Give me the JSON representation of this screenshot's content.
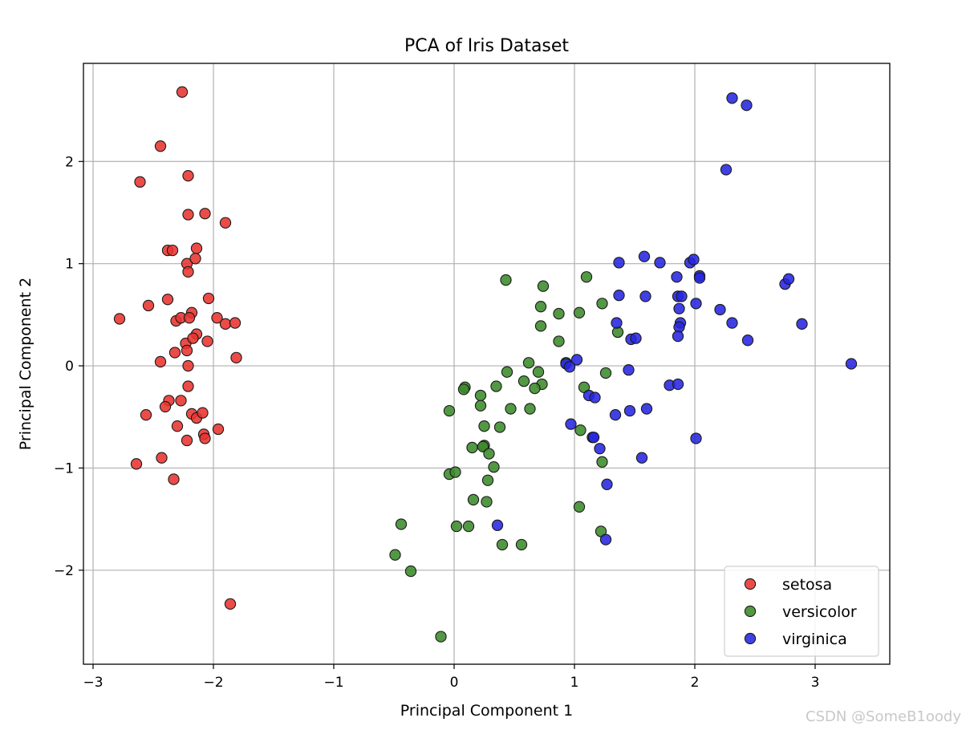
{
  "chart_data": {
    "type": "scatter",
    "title": "PCA of Iris Dataset",
    "xlabel": "Principal Component 1",
    "ylabel": "Principal Component 2",
    "xlim": [
      -3.08,
      3.62
    ],
    "ylim": [
      -2.92,
      2.96
    ],
    "xticks": [
      -3,
      -2,
      -1,
      0,
      1,
      2,
      3
    ],
    "yticks": [
      -2,
      -1,
      0,
      1,
      2
    ],
    "xtick_labels": [
      "−3",
      "−2",
      "−1",
      "0",
      "1",
      "2",
      "3"
    ],
    "ytick_labels": [
      "−2",
      "−1",
      "0",
      "1",
      "2"
    ],
    "grid": true,
    "legend_position": "lower-right",
    "series": [
      {
        "name": "setosa",
        "color": "#e8332f",
        "points": [
          [
            -2.26,
            2.68
          ],
          [
            -2.44,
            2.15
          ],
          [
            -2.61,
            1.8
          ],
          [
            -2.21,
            1.86
          ],
          [
            -2.21,
            1.48
          ],
          [
            -2.07,
            1.49
          ],
          [
            -1.9,
            1.4
          ],
          [
            -2.38,
            1.13
          ],
          [
            -2.34,
            1.13
          ],
          [
            -2.14,
            1.15
          ],
          [
            -2.22,
            1.0
          ],
          [
            -2.15,
            1.05
          ],
          [
            -2.21,
            0.92
          ],
          [
            -2.38,
            0.65
          ],
          [
            -2.54,
            0.59
          ],
          [
            -2.04,
            0.66
          ],
          [
            -2.78,
            0.46
          ],
          [
            -2.31,
            0.44
          ],
          [
            -2.27,
            0.47
          ],
          [
            -2.18,
            0.52
          ],
          [
            -2.2,
            0.47
          ],
          [
            -1.97,
            0.47
          ],
          [
            -1.9,
            0.41
          ],
          [
            -1.82,
            0.42
          ],
          [
            -2.23,
            0.22
          ],
          [
            -2.14,
            0.31
          ],
          [
            -2.17,
            0.27
          ],
          [
            -2.05,
            0.24
          ],
          [
            -2.22,
            0.15
          ],
          [
            -2.32,
            0.13
          ],
          [
            -2.44,
            0.04
          ],
          [
            -1.81,
            0.08
          ],
          [
            -2.21,
            0.0
          ],
          [
            -2.21,
            -0.2
          ],
          [
            -2.37,
            -0.34
          ],
          [
            -2.27,
            -0.34
          ],
          [
            -2.4,
            -0.4
          ],
          [
            -2.56,
            -0.48
          ],
          [
            -2.18,
            -0.47
          ],
          [
            -2.14,
            -0.51
          ],
          [
            -2.09,
            -0.46
          ],
          [
            -2.3,
            -0.59
          ],
          [
            -2.08,
            -0.67
          ],
          [
            -2.07,
            -0.71
          ],
          [
            -2.22,
            -0.73
          ],
          [
            -1.96,
            -0.62
          ],
          [
            -2.43,
            -0.9
          ],
          [
            -2.64,
            -0.96
          ],
          [
            -2.33,
            -1.11
          ],
          [
            -1.86,
            -2.33
          ]
        ]
      },
      {
        "name": "versicolor",
        "color": "#3b8a2a",
        "points": [
          [
            0.43,
            0.84
          ],
          [
            1.1,
            0.87
          ],
          [
            0.74,
            0.78
          ],
          [
            0.72,
            0.58
          ],
          [
            1.23,
            0.61
          ],
          [
            0.87,
            0.51
          ],
          [
            1.04,
            0.52
          ],
          [
            0.72,
            0.39
          ],
          [
            1.36,
            0.33
          ],
          [
            0.87,
            0.24
          ],
          [
            0.93,
            0.03
          ],
          [
            0.62,
            0.03
          ],
          [
            0.7,
            -0.06
          ],
          [
            0.44,
            -0.06
          ],
          [
            0.58,
            -0.15
          ],
          [
            0.73,
            -0.18
          ],
          [
            0.67,
            -0.22
          ],
          [
            1.26,
            -0.07
          ],
          [
            1.08,
            -0.21
          ],
          [
            0.35,
            -0.2
          ],
          [
            0.09,
            -0.21
          ],
          [
            0.08,
            -0.23
          ],
          [
            0.22,
            -0.29
          ],
          [
            0.22,
            -0.39
          ],
          [
            0.47,
            -0.42
          ],
          [
            0.63,
            -0.42
          ],
          [
            -0.04,
            -0.44
          ],
          [
            0.25,
            -0.59
          ],
          [
            0.38,
            -0.6
          ],
          [
            1.05,
            -0.63
          ],
          [
            0.15,
            -0.8
          ],
          [
            0.25,
            -0.78
          ],
          [
            0.24,
            -0.79
          ],
          [
            0.29,
            -0.86
          ],
          [
            1.23,
            -0.94
          ],
          [
            0.33,
            -0.99
          ],
          [
            -0.04,
            -1.06
          ],
          [
            0.01,
            -1.04
          ],
          [
            0.28,
            -1.12
          ],
          [
            0.16,
            -1.31
          ],
          [
            0.27,
            -1.33
          ],
          [
            1.04,
            -1.38
          ],
          [
            -0.44,
            -1.55
          ],
          [
            0.02,
            -1.57
          ],
          [
            0.12,
            -1.57
          ],
          [
            1.22,
            -1.62
          ],
          [
            0.4,
            -1.75
          ],
          [
            0.56,
            -1.75
          ],
          [
            -0.49,
            -1.85
          ],
          [
            -0.36,
            -2.01
          ],
          [
            -0.11,
            -2.65
          ]
        ]
      },
      {
        "name": "virginica",
        "color": "#2525e0",
        "points": [
          [
            2.31,
            2.62
          ],
          [
            2.43,
            2.55
          ],
          [
            2.26,
            1.92
          ],
          [
            1.58,
            1.07
          ],
          [
            1.37,
            1.01
          ],
          [
            1.71,
            1.01
          ],
          [
            1.96,
            1.01
          ],
          [
            1.99,
            1.04
          ],
          [
            1.85,
            0.87
          ],
          [
            2.04,
            0.88
          ],
          [
            2.04,
            0.86
          ],
          [
            2.75,
            0.8
          ],
          [
            2.78,
            0.85
          ],
          [
            1.37,
            0.69
          ],
          [
            1.59,
            0.68
          ],
          [
            1.86,
            0.68
          ],
          [
            1.89,
            0.68
          ],
          [
            2.01,
            0.61
          ],
          [
            2.21,
            0.55
          ],
          [
            1.87,
            0.56
          ],
          [
            1.35,
            0.42
          ],
          [
            2.31,
            0.42
          ],
          [
            1.88,
            0.42
          ],
          [
            1.87,
            0.38
          ],
          [
            2.89,
            0.41
          ],
          [
            1.86,
            0.29
          ],
          [
            1.47,
            0.26
          ],
          [
            1.51,
            0.27
          ],
          [
            2.44,
            0.25
          ],
          [
            0.93,
            0.02
          ],
          [
            0.96,
            -0.01
          ],
          [
            1.02,
            0.06
          ],
          [
            3.3,
            0.02
          ],
          [
            1.45,
            -0.04
          ],
          [
            1.79,
            -0.19
          ],
          [
            1.86,
            -0.18
          ],
          [
            1.12,
            -0.29
          ],
          [
            1.17,
            -0.31
          ],
          [
            1.34,
            -0.48
          ],
          [
            1.46,
            -0.44
          ],
          [
            1.6,
            -0.42
          ],
          [
            0.97,
            -0.57
          ],
          [
            1.15,
            -0.7
          ],
          [
            1.16,
            -0.7
          ],
          [
            1.21,
            -0.81
          ],
          [
            2.01,
            -0.71
          ],
          [
            1.56,
            -0.9
          ],
          [
            1.27,
            -1.16
          ],
          [
            0.36,
            -1.56
          ],
          [
            1.26,
            -1.7
          ]
        ]
      }
    ]
  },
  "watermark": "CSDN @SomeB1oody"
}
